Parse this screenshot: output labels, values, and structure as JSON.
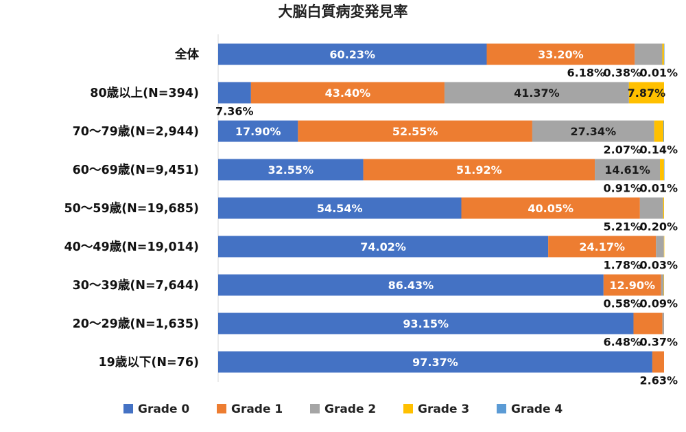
{
  "chart_data": {
    "type": "bar",
    "orientation": "horizontal",
    "stacked": true,
    "title": "大脳白質病変発見率",
    "xlim": [
      0,
      100
    ],
    "legend_position": "bottom",
    "categories": [
      "全体",
      "80歳以上(N=394)",
      "70～79歳(N=2,944)",
      "60～69歳(N=9,451)",
      "50～59歳(N=19,685)",
      "40～49歳(N=19,014)",
      "30～39歳(N=7,644)",
      "20～29歳(N=1,635)",
      "19歳以下(N=76)"
    ],
    "series": [
      {
        "name": "Grade 0",
        "color": "#4472C4",
        "values": [
          60.23,
          7.36,
          17.9,
          32.55,
          54.54,
          74.02,
          86.43,
          93.15,
          97.37
        ]
      },
      {
        "name": "Grade 1",
        "color": "#ED7D31",
        "values": [
          33.2,
          43.4,
          52.55,
          51.92,
          40.05,
          24.17,
          12.9,
          6.48,
          2.63
        ]
      },
      {
        "name": "Grade 2",
        "color": "#A5A5A5",
        "values": [
          6.18,
          41.37,
          27.34,
          14.61,
          5.21,
          1.78,
          0.58,
          0.37,
          null
        ]
      },
      {
        "name": "Grade 3",
        "color": "#FFC000",
        "values": [
          0.38,
          7.87,
          2.07,
          0.91,
          0.2,
          0.03,
          0.09,
          null,
          null
        ]
      },
      {
        "name": "Grade 4",
        "color": "#5B9BD5",
        "values": [
          0.01,
          null,
          0.14,
          0.01,
          null,
          null,
          null,
          null,
          null
        ]
      }
    ],
    "data_labels": [
      [
        {
          "text": "60.23%",
          "series": 0
        },
        {
          "text": "33.20%",
          "series": 1
        },
        {
          "text": "6.18%",
          "series": 2
        },
        {
          "text": "0.38%",
          "series": 3
        },
        {
          "text": "0.01%",
          "series": 4
        }
      ],
      [
        {
          "text": "7.36%",
          "series": 0
        },
        {
          "text": "43.40%",
          "series": 1
        },
        {
          "text": "41.37%",
          "series": 2
        },
        {
          "text": "7.87%",
          "series": 3
        }
      ],
      [
        {
          "text": "17.90%",
          "series": 0
        },
        {
          "text": "52.55%",
          "series": 1
        },
        {
          "text": "27.34%",
          "series": 2
        },
        {
          "text": "2.07%",
          "series": 3
        },
        {
          "text": "0.14%",
          "series": 4
        }
      ],
      [
        {
          "text": "32.55%",
          "series": 0
        },
        {
          "text": "51.92%",
          "series": 1
        },
        {
          "text": "14.61%",
          "series": 2
        },
        {
          "text": "0.91%",
          "series": 3
        },
        {
          "text": "0.01%",
          "series": 4
        }
      ],
      [
        {
          "text": "54.54%",
          "series": 0
        },
        {
          "text": "40.05%",
          "series": 1
        },
        {
          "text": "5.21%",
          "series": 2
        },
        {
          "text": "0.20%",
          "series": 3
        }
      ],
      [
        {
          "text": "74.02%",
          "series": 0
        },
        {
          "text": "24.17%",
          "series": 1
        },
        {
          "text": "1.78%",
          "series": 2
        },
        {
          "text": "0.03%",
          "series": 3
        }
      ],
      [
        {
          "text": "86.43%",
          "series": 0
        },
        {
          "text": "12.90%",
          "series": 1
        },
        {
          "text": "0.58%",
          "series": 2
        },
        {
          "text": "0.09%",
          "series": 3
        }
      ],
      [
        {
          "text": "93.15%",
          "series": 0
        },
        {
          "text": "6.48%",
          "series": 1
        },
        {
          "text": "0.37%",
          "series": 2
        }
      ],
      [
        {
          "text": "97.37%",
          "series": 0
        },
        {
          "text": "2.63%",
          "series": 1
        }
      ]
    ]
  }
}
